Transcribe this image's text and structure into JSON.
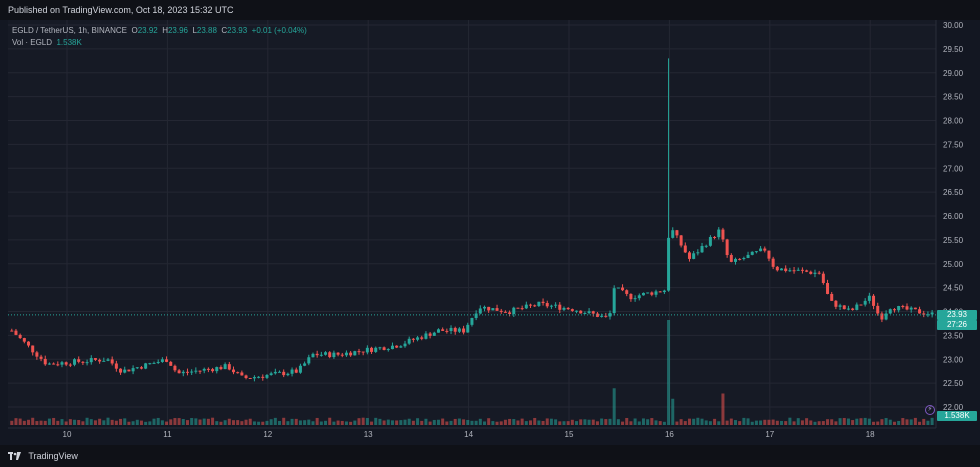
{
  "header": {
    "published": "Published on TradingView.com, Oct 18, 2023 15:32 UTC"
  },
  "legend": {
    "symbol": "EGLD / TetherUS, 1h, BINANCE",
    "o_label": "O",
    "o_value": "23.92",
    "h_label": "H",
    "h_value": "23.96",
    "l_label": "L",
    "l_value": "23.88",
    "c_label": "C",
    "c_value": "23.93",
    "change": "+0.01 (+0.04%)",
    "vol_label": "Vol · EGLD",
    "vol_value": "1.538K"
  },
  "badges": {
    "price": "23.93",
    "countdown": "27:26",
    "volume": "1.538K"
  },
  "footer": {
    "brand": "TradingView"
  },
  "colors": {
    "up": "#26a69a",
    "down": "#ef5350",
    "background": "#131722",
    "pane": "#161a25",
    "grid": "#242733",
    "text": "#b2b5be"
  },
  "chart_data": {
    "type": "candlestick",
    "title": "EGLD / TetherUS, 1h, BINANCE",
    "xlabel": "",
    "ylabel": "",
    "ylim": [
      21.75,
      30.1
    ],
    "yticks": [
      "30.00",
      "29.50",
      "29.00",
      "28.50",
      "28.00",
      "27.50",
      "27.00",
      "26.50",
      "26.00",
      "25.50",
      "25.00",
      "24.50",
      "24.00",
      "23.50",
      "23.00",
      "22.50",
      "22.00"
    ],
    "xticks": [
      "10",
      "11",
      "12",
      "13",
      "14",
      "15",
      "16",
      "17",
      "18"
    ],
    "last_price": 23.93,
    "ohlc_anchors": [
      {
        "day": 9.45,
        "close": 23.6
      },
      {
        "day": 9.8,
        "close": 22.9
      },
      {
        "day": 10.4,
        "close": 23.0
      },
      {
        "day": 10.55,
        "close": 22.75
      },
      {
        "day": 11.0,
        "close": 23.0
      },
      {
        "day": 11.1,
        "close": 22.7
      },
      {
        "day": 11.6,
        "close": 22.85
      },
      {
        "day": 11.75,
        "close": 22.6
      },
      {
        "day": 12.3,
        "close": 22.75
      },
      {
        "day": 12.45,
        "close": 23.1
      },
      {
        "day": 12.7,
        "close": 23.1
      },
      {
        "day": 13.3,
        "close": 23.3
      },
      {
        "day": 13.7,
        "close": 23.6
      },
      {
        "day": 13.95,
        "close": 23.6
      },
      {
        "day": 14.1,
        "close": 24.1
      },
      {
        "day": 14.4,
        "close": 24.0
      },
      {
        "day": 14.7,
        "close": 24.15
      },
      {
        "day": 15.05,
        "close": 24.05
      },
      {
        "day": 15.4,
        "close": 23.85
      },
      {
        "day": 15.45,
        "close": 24.5
      },
      {
        "day": 15.6,
        "close": 24.3
      },
      {
        "day": 15.95,
        "close": 24.45
      },
      {
        "day": 16.0,
        "close": 25.8
      },
      {
        "day": 16.2,
        "close": 25.1
      },
      {
        "day": 16.5,
        "close": 25.7
      },
      {
        "day": 16.6,
        "close": 25.0
      },
      {
        "day": 16.95,
        "close": 25.3
      },
      {
        "day": 17.05,
        "close": 24.9
      },
      {
        "day": 17.5,
        "close": 24.8
      },
      {
        "day": 17.6,
        "close": 24.2
      },
      {
        "day": 17.8,
        "close": 24.0
      },
      {
        "day": 18.0,
        "close": 24.3
      },
      {
        "day": 18.1,
        "close": 23.85
      },
      {
        "day": 18.2,
        "close": 24.1
      },
      {
        "day": 18.65,
        "close": 23.93
      }
    ],
    "spike": {
      "day": 15.98,
      "high": 29.3
    },
    "volume_spikes": [
      {
        "day": 15.45,
        "value": 0.35
      },
      {
        "day": 15.98,
        "value": 1.0
      },
      {
        "day": 16.05,
        "value": 0.25
      },
      {
        "day": 16.55,
        "value": 0.3
      }
    ]
  }
}
